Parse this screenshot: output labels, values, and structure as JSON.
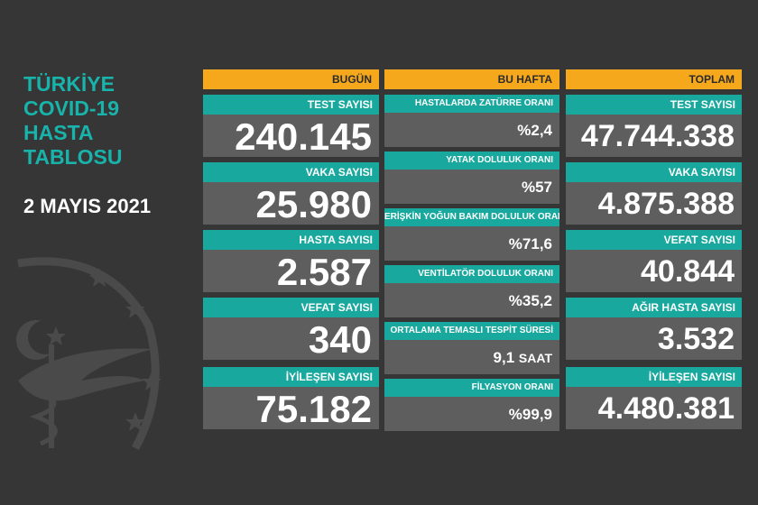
{
  "title_lines": [
    "TÜRKİYE",
    "COVID-19",
    "HASTA",
    "TABLOSU"
  ],
  "date": "2 MAYIS 2021",
  "today": {
    "header": "BUGÜN",
    "cards": [
      {
        "label": "TEST SAYISI",
        "value": "240.145"
      },
      {
        "label": "VAKA SAYISI",
        "value": "25.980"
      },
      {
        "label": "HASTA SAYISI",
        "value": "2.587"
      },
      {
        "label": "VEFAT SAYISI",
        "value": "340"
      },
      {
        "label": "İYİLEŞEN SAYISI",
        "value": "75.182"
      }
    ]
  },
  "week": {
    "header": "BU HAFTA",
    "cards": [
      {
        "label": "HASTALARDA ZATÜRRE ORANI",
        "value": "%2,4"
      },
      {
        "label": "YATAK DOLULUK ORANI",
        "value": "%57"
      },
      {
        "label": "ERİŞKİN YOĞUN BAKIM DOLULUK ORANI",
        "value": "%71,6"
      },
      {
        "label": "VENTİLATÖR DOLULUK ORANI",
        "value": "%35,2"
      },
      {
        "label": "ORTALAMA TEMASLI TESPİT SÜRESİ",
        "value": "9,1",
        "unit": "SAAT"
      },
      {
        "label": "FİLYASYON ORANI",
        "value": "%99,9"
      }
    ]
  },
  "total": {
    "header": "TOPLAM",
    "cards": [
      {
        "label": "TEST SAYISI",
        "value": "47.744.338"
      },
      {
        "label": "VAKA SAYISI",
        "value": "4.875.388"
      },
      {
        "label": "VEFAT SAYISI",
        "value": "40.844"
      },
      {
        "label": "AĞIR HASTA SAYISI",
        "value": "3.532"
      },
      {
        "label": "İYİLEŞEN SAYISI",
        "value": "4.480.381"
      }
    ]
  },
  "colors": {
    "background": "#363636",
    "accent_teal": "#18a89e",
    "header_orange": "#f5a81c",
    "value_gray": "#5e5e5e"
  },
  "icons": [
    "ministry-of-health-emblem-icon"
  ]
}
